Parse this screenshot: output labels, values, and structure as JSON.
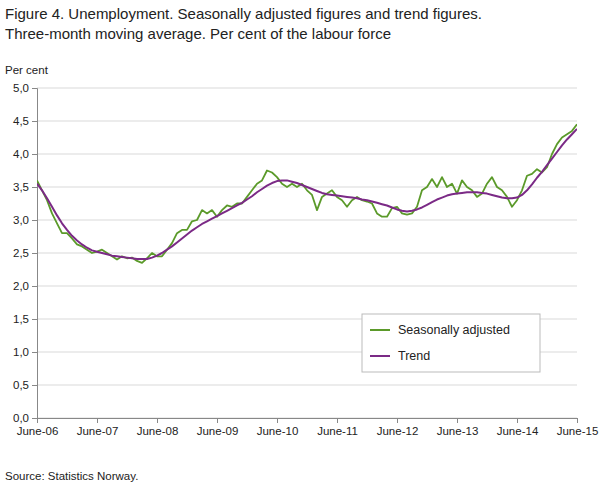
{
  "chart_data": {
    "type": "line",
    "title": "Figure 4. Unemployment. Seasonally adjusted figures and trend figures.",
    "subtitle": "Three-month moving average. Per cent of the labour force",
    "y_label": "Per cent",
    "source": "Source: Statistics Norway.",
    "categories": [
      "June-06",
      null,
      null,
      null,
      null,
      null,
      null,
      null,
      null,
      null,
      null,
      null,
      "June-07",
      null,
      null,
      null,
      null,
      null,
      null,
      null,
      null,
      null,
      null,
      null,
      "June-08",
      null,
      null,
      null,
      null,
      null,
      null,
      null,
      null,
      null,
      null,
      null,
      "June-09",
      null,
      null,
      null,
      null,
      null,
      null,
      null,
      null,
      null,
      null,
      null,
      "June-10",
      null,
      null,
      null,
      null,
      null,
      null,
      null,
      null,
      null,
      null,
      null,
      "June-11",
      null,
      null,
      null,
      null,
      null,
      null,
      null,
      null,
      null,
      null,
      null,
      "June-12",
      null,
      null,
      null,
      null,
      null,
      null,
      null,
      null,
      null,
      null,
      null,
      "June-13",
      null,
      null,
      null,
      null,
      null,
      null,
      null,
      null,
      null,
      null,
      null,
      "June-14",
      null,
      null,
      null,
      null,
      null,
      null,
      null,
      null,
      null,
      null,
      null,
      "June-15"
    ],
    "series": [
      {
        "name": "Seasonally adjusted",
        "color": "#5b9a2a",
        "values": [
          3.6,
          3.45,
          3.3,
          3.1,
          2.95,
          2.8,
          2.8,
          2.72,
          2.63,
          2.6,
          2.55,
          2.5,
          2.52,
          2.55,
          2.5,
          2.45,
          2.4,
          2.45,
          2.42,
          2.43,
          2.38,
          2.35,
          2.42,
          2.5,
          2.45,
          2.45,
          2.55,
          2.65,
          2.8,
          2.85,
          2.85,
          2.98,
          3.0,
          3.15,
          3.1,
          3.15,
          3.05,
          3.15,
          3.22,
          3.2,
          3.25,
          3.25,
          3.35,
          3.45,
          3.55,
          3.6,
          3.75,
          3.72,
          3.65,
          3.55,
          3.5,
          3.55,
          3.5,
          3.55,
          3.45,
          3.38,
          3.15,
          3.35,
          3.4,
          3.45,
          3.35,
          3.3,
          3.2,
          3.3,
          3.35,
          3.3,
          3.28,
          3.25,
          3.1,
          3.05,
          3.05,
          3.18,
          3.2,
          3.1,
          3.08,
          3.1,
          3.2,
          3.45,
          3.5,
          3.62,
          3.5,
          3.65,
          3.5,
          3.55,
          3.4,
          3.6,
          3.5,
          3.45,
          3.35,
          3.4,
          3.55,
          3.65,
          3.5,
          3.45,
          3.35,
          3.2,
          3.3,
          3.45,
          3.67,
          3.7,
          3.77,
          3.72,
          3.8,
          4.0,
          4.15,
          4.25,
          4.3,
          4.35,
          4.45
        ]
      },
      {
        "name": "Trend",
        "color": "#7b2a86",
        "values": [
          3.55,
          3.45,
          3.33,
          3.2,
          3.07,
          2.95,
          2.85,
          2.76,
          2.69,
          2.63,
          2.58,
          2.54,
          2.52,
          2.5,
          2.48,
          2.46,
          2.45,
          2.44,
          2.43,
          2.42,
          2.41,
          2.41,
          2.41,
          2.43,
          2.46,
          2.5,
          2.55,
          2.6,
          2.66,
          2.72,
          2.78,
          2.84,
          2.89,
          2.94,
          2.98,
          3.02,
          3.06,
          3.1,
          3.14,
          3.18,
          3.22,
          3.26,
          3.31,
          3.36,
          3.42,
          3.47,
          3.52,
          3.56,
          3.59,
          3.6,
          3.6,
          3.58,
          3.56,
          3.53,
          3.5,
          3.47,
          3.44,
          3.41,
          3.39,
          3.38,
          3.37,
          3.36,
          3.35,
          3.34,
          3.33,
          3.31,
          3.3,
          3.28,
          3.26,
          3.24,
          3.22,
          3.19,
          3.16,
          3.14,
          3.13,
          3.14,
          3.16,
          3.19,
          3.23,
          3.27,
          3.31,
          3.34,
          3.37,
          3.39,
          3.4,
          3.41,
          3.42,
          3.42,
          3.42,
          3.41,
          3.4,
          3.38,
          3.36,
          3.34,
          3.33,
          3.33,
          3.34,
          3.38,
          3.45,
          3.54,
          3.64,
          3.73,
          3.83,
          3.93,
          4.03,
          4.13,
          4.22,
          4.3,
          4.38
        ]
      }
    ],
    "ylim": [
      0,
      5
    ],
    "yticks": [
      {
        "value": 0,
        "label": "0,0"
      },
      {
        "value": 0.5,
        "label": "0,5"
      },
      {
        "value": 1,
        "label": "1,0"
      },
      {
        "value": 1.5,
        "label": "1,5"
      },
      {
        "value": 2,
        "label": "2,0"
      },
      {
        "value": 2.5,
        "label": "2,5"
      },
      {
        "value": 3,
        "label": "3,0"
      },
      {
        "value": 3.5,
        "label": "3,5"
      },
      {
        "value": 4,
        "label": "4,0"
      },
      {
        "value": 4.5,
        "label": "4,5"
      },
      {
        "value": 5,
        "label": "5,0"
      }
    ],
    "grid": true,
    "legend": "lower right"
  }
}
